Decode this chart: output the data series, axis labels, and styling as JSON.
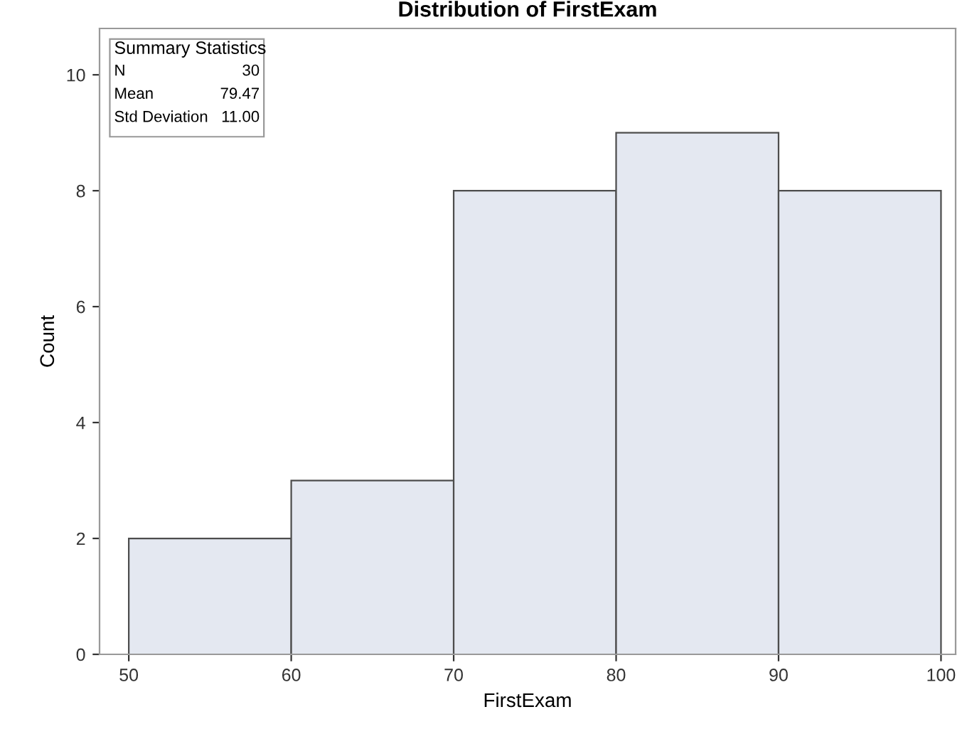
{
  "chart_data": {
    "type": "histogram",
    "title": "Distribution of FirstExam",
    "xlabel": "FirstExam",
    "ylabel": "Count",
    "bins": [
      50,
      60,
      70,
      80,
      90,
      100
    ],
    "values": [
      2,
      3,
      8,
      9,
      8
    ],
    "color": "#e4e8f1",
    "xlim": [
      48.2,
      100.9
    ],
    "ylim": [
      0,
      10.8
    ],
    "xticks": [
      50,
      60,
      70,
      80,
      90,
      100
    ],
    "yticks": [
      0,
      2,
      4,
      6,
      8,
      10
    ],
    "grid": false,
    "annotations": [
      "Summary Statistics",
      "N",
      "30",
      "Mean",
      "79.47",
      "Std Deviation",
      "11.00"
    ]
  }
}
